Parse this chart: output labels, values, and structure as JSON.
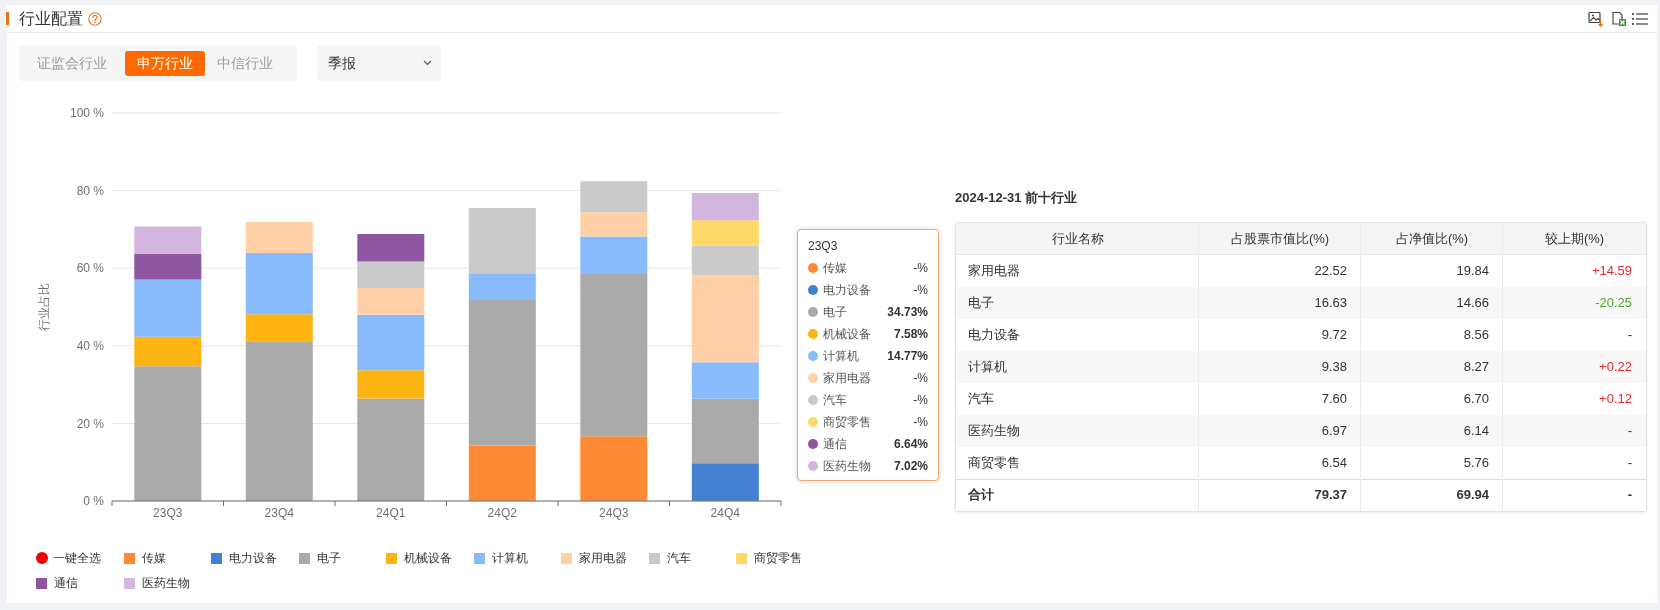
{
  "chart_data": [
    {
      "type": "bar",
      "title": "行业配置",
      "annotations": [
        "证监会行业",
        "申万行业",
        "中信行业",
        "季报",
        "一键全选",
        "23Q3",
        "-%",
        "-%",
        "34.73%",
        "7.58%",
        "14.77%",
        "-%",
        "-%",
        "-%",
        "6.64%",
        "7.02%"
      ],
      "categories": [
        "23Q3",
        "23Q4",
        "24Q1",
        "24Q2",
        "24Q3",
        "24Q4"
      ],
      "stacked": true,
      "ylabel": "行业占比",
      "ylim": [
        0,
        100
      ],
      "yticks": [
        {
          "value": 0,
          "label": "0 %"
        },
        {
          "value": 20,
          "label": "20 %"
        },
        {
          "value": 40,
          "label": "40 %"
        },
        {
          "value": 60,
          "label": "60 %"
        },
        {
          "value": 80,
          "label": "80 %"
        },
        {
          "value": 100,
          "label": "100 %"
        }
      ],
      "grid": "y",
      "legend": "bottom",
      "series": [
        {
          "name": "传媒",
          "color": "#ff8a35",
          "values": [
            null,
            null,
            null,
            14.3,
            16.7,
            null
          ]
        },
        {
          "name": "电力设备",
          "color": "#4281cf",
          "values": [
            null,
            null,
            null,
            null,
            null,
            9.72
          ]
        },
        {
          "name": "电子",
          "color": "#aaaaaa",
          "values": [
            34.73,
            41.2,
            26.4,
            37.5,
            41.8,
            16.63
          ]
        },
        {
          "name": "机械设备",
          "color": "#ffb511",
          "values": [
            7.58,
            6.9,
            7.3,
            null,
            null,
            null
          ]
        },
        {
          "name": "计算机",
          "color": "#87bbfb",
          "values": [
            14.77,
            15.8,
            14.3,
            6.7,
            9.7,
            9.38
          ]
        },
        {
          "name": "家用电器",
          "color": "#ffcfa6",
          "values": [
            null,
            8.0,
            6.9,
            null,
            6.2,
            22.52
          ]
        },
        {
          "name": "汽车",
          "color": "#cacaca",
          "values": [
            null,
            null,
            6.8,
            17.0,
            8.0,
            7.6
          ]
        },
        {
          "name": "商贸零售",
          "color": "#ffd86a",
          "values": [
            null,
            null,
            null,
            null,
            null,
            6.54
          ]
        },
        {
          "name": "通信",
          "color": "#8e56a0",
          "values": [
            6.64,
            null,
            7.1,
            null,
            null,
            null
          ]
        },
        {
          "name": "医药生物",
          "color": "#d2b6de",
          "values": [
            7.02,
            null,
            null,
            null,
            null,
            6.97
          ]
        }
      ]
    },
    {
      "type": "other",
      "title": "2024-12-31 前十行业",
      "ylabel": "行业名称",
      "categories": [
        "家用电器",
        "电子",
        "电力设备",
        "计算机",
        "汽车",
        "医药生物",
        "商贸零售",
        "合计"
      ],
      "series": [
        {
          "name": "占股票市值比(%)",
          "colors": [
            "#ffffff",
            "#f7f7f7",
            "#ffffff",
            "#f7f7f7",
            "#ffffff",
            "#f7f7f7",
            "#ffffff",
            "#ffffff"
          ],
          "values": [
            22.52,
            16.63,
            9.72,
            9.38,
            7.6,
            6.97,
            6.54,
            79.37
          ],
          "value_labels": [
            "22.52",
            "16.63",
            "9.72",
            "9.38",
            "7.60",
            "6.97",
            "6.54",
            "79.37"
          ]
        },
        {
          "name": "占净值比(%)",
          "colors": [
            "#ffffff",
            "#f7f7f7",
            "#ffffff",
            "#f7f7f7",
            "#ffffff",
            "#f7f7f7",
            "#ffffff",
            "#ffffff"
          ],
          "values": [
            19.84,
            14.66,
            8.56,
            8.27,
            6.7,
            6.14,
            5.76,
            69.94
          ],
          "value_labels": [
            "19.84",
            "14.66",
            "8.56",
            "8.27",
            "6.70",
            "6.14",
            "5.76",
            "69.94"
          ]
        },
        {
          "name": "较上期(%)",
          "colors": [
            "#ffffff",
            "#f7f7f7",
            "#ffffff",
            "#f7f7f7",
            "#ffffff",
            "#f7f7f7",
            "#ffffff",
            "#ffffff"
          ],
          "values": [
            14.59,
            -20.25,
            null,
            0.22,
            0.12,
            null,
            null,
            null
          ],
          "value_labels": [
            "+14.59",
            "-20.25",
            "-",
            "+0.22",
            "+0.12",
            "-",
            "-",
            "-"
          ]
        }
      ]
    }
  ]
}
